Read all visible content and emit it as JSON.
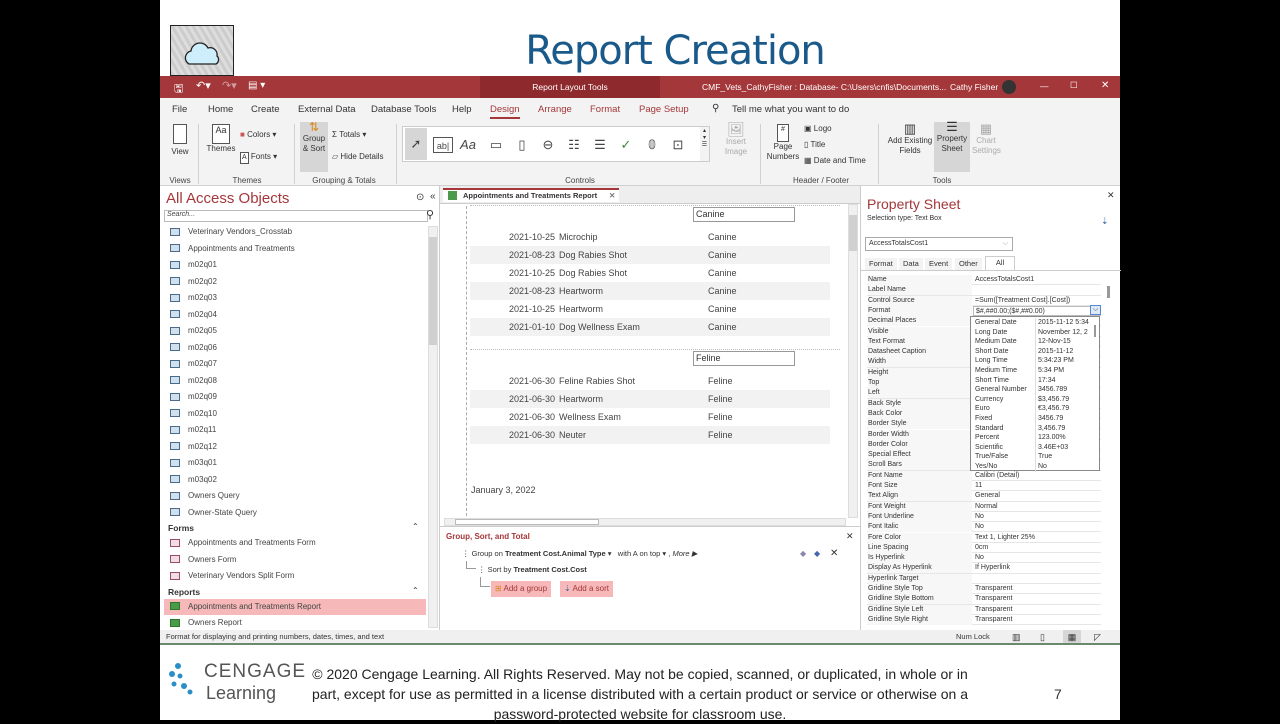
{
  "slide": {
    "title": "Report Creation",
    "page_number": "7",
    "copyright": "© 2020 Cengage Learning. All Rights Reserved. May not be copied, scanned, or duplicated, in whole or in part, except for use as permitted in a license distributed with a certain product or service or otherwise on a password-protected website for classroom use.",
    "logo_text_1": "CENGAGE",
    "logo_text_2": "Learning"
  },
  "titlebar": {
    "context": "Report Layout Tools",
    "doc": "CMF_Vets_CathyFisher : Database- C:\\Users\\cnfis\\Documents...",
    "user": "Cathy Fisher",
    "minimize": "—",
    "maximize": "☐",
    "close": "✕"
  },
  "menu": [
    "File",
    "Home",
    "Create",
    "External Data",
    "Database Tools",
    "Help",
    "Design",
    "Arrange",
    "Format",
    "Page Setup"
  ],
  "menu_active": "Design",
  "tell_me": "Tell me what you want to do",
  "ribbon": {
    "view": "View",
    "themes": "Themes",
    "colors": "Colors",
    "fonts": "Fonts",
    "group_sort": "Group & Sort",
    "totals": "Totals",
    "hide_details": "Hide Details",
    "insert_image": "Insert Image",
    "page_numbers": "Page Numbers",
    "logo": "Logo",
    "title": "Title",
    "date_time": "Date and Time",
    "add_fields": "Add Existing Fields",
    "property_sheet": "Property Sheet",
    "chart_settings": "Chart Settings",
    "groups": {
      "views": "Views",
      "themes": "Themes",
      "grouping": "Grouping & Totals",
      "controls": "Controls",
      "header_footer": "Header / Footer",
      "tools": "Tools"
    }
  },
  "nav": {
    "title": "All Access Objects",
    "search_placeholder": "Search...",
    "queries": [
      "Veterinary Vendors_Crosstab",
      "Appointments and Treatments",
      "m02q01",
      "m02q02",
      "m02q03",
      "m02q04",
      "m02q05",
      "m02q06",
      "m02q07",
      "m02q08",
      "m02q09",
      "m02q10",
      "m02q11",
      "m02q12",
      "m03q01",
      "m03q02",
      "Owners Query",
      "Owner-State Query"
    ],
    "forms_label": "Forms",
    "forms": [
      "Appointments and Treatments Form",
      "Owners Form",
      "Veterinary Vendors Split Form"
    ],
    "reports_label": "Reports",
    "reports": [
      "Appointments and Treatments Report",
      "Owners Report"
    ],
    "selected": "Appointments and Treatments Report"
  },
  "report": {
    "tab": "Appointments and Treatments Report",
    "groups": [
      {
        "name": "Canine",
        "rows": [
          [
            "2021-10-25",
            "Microchip",
            "Canine"
          ],
          [
            "2021-08-23",
            "Dog Rabies Shot",
            "Canine"
          ],
          [
            "2021-10-25",
            "Dog Rabies Shot",
            "Canine"
          ],
          [
            "2021-08-23",
            "Heartworm",
            "Canine"
          ],
          [
            "2021-10-25",
            "Heartworm",
            "Canine"
          ],
          [
            "2021-01-10",
            "Dog Wellness Exam",
            "Canine"
          ]
        ]
      },
      {
        "name": "Feline",
        "rows": [
          [
            "2021-06-30",
            "Feline Rabies Shot",
            "Feline"
          ],
          [
            "2021-06-30",
            "Heartworm",
            "Feline"
          ],
          [
            "2021-06-30",
            "Wellness Exam",
            "Feline"
          ],
          [
            "2021-06-30",
            "Neuter",
            "Feline"
          ]
        ]
      }
    ],
    "date": "January 3, 2022"
  },
  "gst": {
    "title": "Group, Sort, and Total",
    "group_on": "Group on",
    "group_field": "Treatment Cost.Animal Type",
    "order": "with A on top",
    "more": "More ▶",
    "sort_by": "Sort by",
    "sort_field": "Treatment Cost.Cost",
    "add_group": "Add a group",
    "add_sort": "Add a sort"
  },
  "props": {
    "title": "Property Sheet",
    "selection_type": "Selection type:  Text Box",
    "object": "AccessTotalsCost1",
    "tabs": [
      "Format",
      "Data",
      "Event",
      "Other",
      "All"
    ],
    "active_tab": "All",
    "rows": [
      [
        "Name",
        "AccessTotalsCost1"
      ],
      [
        "Label Name",
        ""
      ],
      [
        "Control Source",
        "=Sum([Treatment Cost].[Cost])"
      ],
      [
        "Format",
        "$#,##0.00;($#,##0.00)"
      ],
      [
        "Decimal Places",
        ""
      ],
      [
        "Visible",
        ""
      ],
      [
        "Text Format",
        ""
      ],
      [
        "Datasheet Caption",
        ""
      ],
      [
        "Width",
        ""
      ],
      [
        "Height",
        ""
      ],
      [
        "Top",
        ""
      ],
      [
        "Left",
        ""
      ],
      [
        "Back Style",
        ""
      ],
      [
        "Back Color",
        ""
      ],
      [
        "Border Style",
        ""
      ],
      [
        "Border Width",
        ""
      ],
      [
        "Border Color",
        ""
      ],
      [
        "Special Effect",
        ""
      ],
      [
        "Scroll Bars",
        ""
      ],
      [
        "Font Name",
        "Calibri (Detail)"
      ],
      [
        "Font Size",
        "11"
      ],
      [
        "Text Align",
        "General"
      ],
      [
        "Font Weight",
        "Normal"
      ],
      [
        "Font Underline",
        "No"
      ],
      [
        "Font Italic",
        "No"
      ],
      [
        "Fore Color",
        "Text 1, Lighter 25%"
      ],
      [
        "Line Spacing",
        "0cm"
      ],
      [
        "Is Hyperlink",
        "No"
      ],
      [
        "Display As Hyperlink",
        "If Hyperlink"
      ],
      [
        "Hyperlink Target",
        ""
      ],
      [
        "Gridline Style Top",
        "Transparent"
      ],
      [
        "Gridline Style Bottom",
        "Transparent"
      ],
      [
        "Gridline Style Left",
        "Transparent"
      ],
      [
        "Gridline Style Right",
        "Transparent"
      ]
    ],
    "format_options": [
      [
        "General Date",
        "2015-11-12 5:34"
      ],
      [
        "Long Date",
        "November 12, 2"
      ],
      [
        "Medium Date",
        "12-Nov-15"
      ],
      [
        "Short Date",
        "2015-11-12"
      ],
      [
        "Long Time",
        "5:34:23 PM"
      ],
      [
        "Medium Time",
        "5:34 PM"
      ],
      [
        "Short Time",
        "17:34"
      ],
      [
        "General Number",
        "3456.789"
      ],
      [
        "Currency",
        "$3,456.79"
      ],
      [
        "Euro",
        "€3,456.79"
      ],
      [
        "Fixed",
        "3456.79"
      ],
      [
        "Standard",
        "3,456.79"
      ],
      [
        "Percent",
        "123.00%"
      ],
      [
        "Scientific",
        "3.46E+03"
      ],
      [
        "True/False",
        "True"
      ],
      [
        "Yes/No",
        "No"
      ]
    ]
  },
  "status": {
    "text": "Format for displaying and printing numbers, dates, times, and text",
    "num_lock": "Num Lock"
  },
  "colors": {
    "accent": "#a4373a",
    "title_blue": "#1a5a8a",
    "selection": "#f6b8b8"
  }
}
